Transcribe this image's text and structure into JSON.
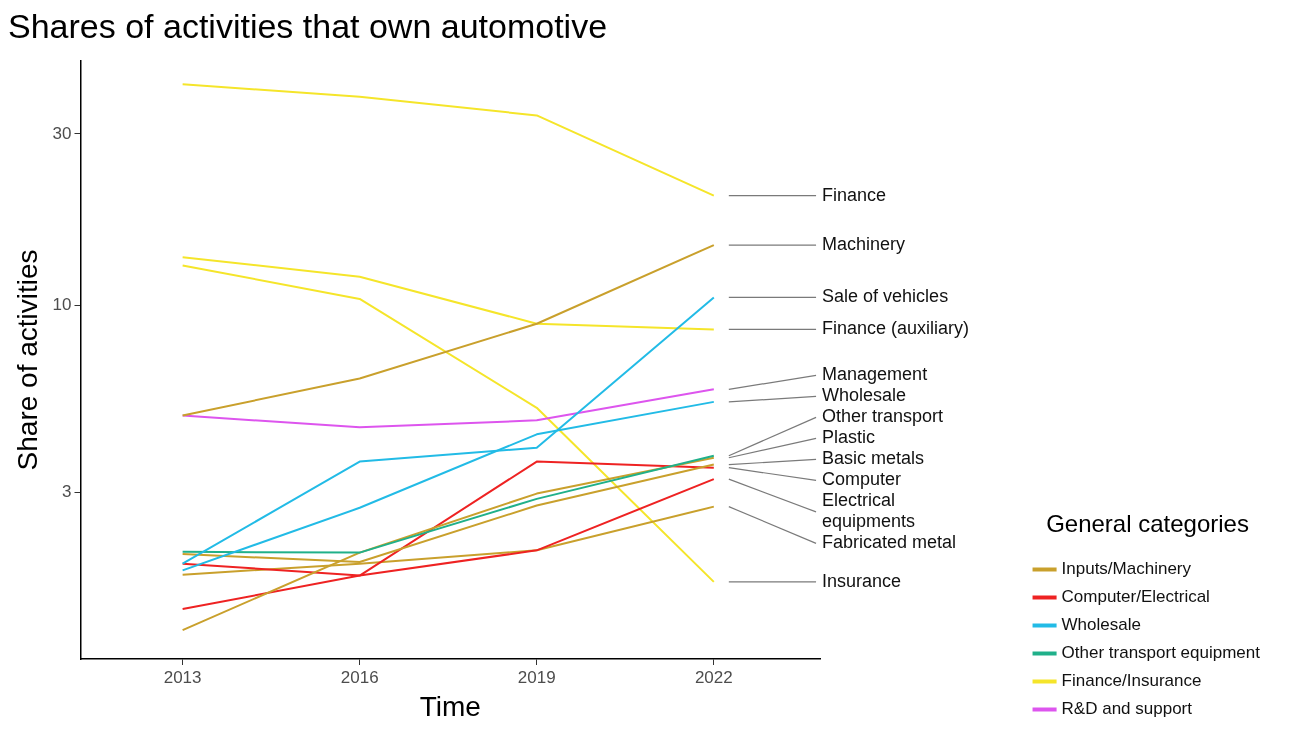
{
  "chart_data": {
    "type": "line",
    "title": "Shares of activities that own automotive",
    "xlabel": "Time",
    "ylabel": "Share of activities",
    "legend_title": "General categories",
    "legend": "bottom right",
    "log": "y",
    "grid": false,
    "x": [
      2013,
      2016,
      2019,
      2022
    ],
    "xlim": [
      2011.27,
      2023.8
    ],
    "xticks": [
      2013,
      2016,
      2019,
      2022
    ],
    "ylim": [
      1.03,
      48
    ],
    "yticks": [
      3,
      10,
      30
    ],
    "series": [
      {
        "name": "Finance",
        "color": "#f5e52a",
        "values": [
          41.3,
          38.1,
          33.8,
          20.2
        ]
      },
      {
        "name": "Machinery",
        "color": "#c9a02c",
        "values": [
          4.92,
          6.24,
          8.87,
          14.7
        ]
      },
      {
        "name": "Sale of vehicles",
        "color": "#22bbe6",
        "values": [
          1.9,
          3.66,
          4.0,
          10.5
        ]
      },
      {
        "name": "Finance (auxiliary)",
        "color": "#f5e52a",
        "values": [
          13.6,
          12.0,
          8.87,
          8.55
        ]
      },
      {
        "name": "Management",
        "color": "#dd55ee",
        "values": [
          4.92,
          4.56,
          4.77,
          5.82
        ]
      },
      {
        "name": "Wholesale",
        "color": "#22bbe6",
        "values": [
          1.82,
          2.72,
          4.36,
          5.37
        ]
      },
      {
        "name": "Other transport",
        "color": "#20b08a",
        "values": [
          2.05,
          2.04,
          2.88,
          3.8
        ]
      },
      {
        "name": "Plastic",
        "color": "#c9a02c",
        "values": [
          1.24,
          2.04,
          2.98,
          3.75
        ]
      },
      {
        "name": "Basic metals",
        "color": "#c9a02c",
        "values": [
          2.02,
          1.92,
          2.76,
          3.59
        ]
      },
      {
        "name": "Computer",
        "color": "#ee2222",
        "values": [
          1.9,
          1.76,
          3.66,
          3.52
        ]
      },
      {
        "name": "Electrical equipments",
        "color": "#ee2222",
        "values": [
          1.42,
          1.76,
          2.07,
          3.27
        ]
      },
      {
        "name": "Fabricated metal",
        "color": "#c9a02c",
        "values": [
          1.77,
          1.9,
          2.07,
          2.74
        ]
      },
      {
        "name": "Insurance",
        "color": "#f5e52a",
        "values": [
          12.9,
          10.4,
          5.17,
          1.69
        ]
      },
      {
        "name": "Inputs/Machinery",
        "color": "#c9a02c",
        "values": [
          null,
          null,
          null,
          null
        ]
      },
      {
        "name": "Computer/Electrical",
        "color": "#ee2222",
        "values": [
          null,
          null,
          null,
          null
        ]
      },
      {
        "name": "Wholesale",
        "color": "#22bbe6",
        "values": [
          null,
          null,
          null,
          null
        ]
      },
      {
        "name": "Other transport equipment",
        "color": "#20b08a",
        "values": [
          null,
          null,
          null,
          null
        ]
      },
      {
        "name": "Finance/Insurance",
        "color": "#f5e52a",
        "values": [
          null,
          null,
          null,
          null
        ]
      },
      {
        "name": "R&D and support",
        "color": "#dd55ee",
        "values": [
          null,
          null,
          null,
          null
        ]
      }
    ]
  }
}
